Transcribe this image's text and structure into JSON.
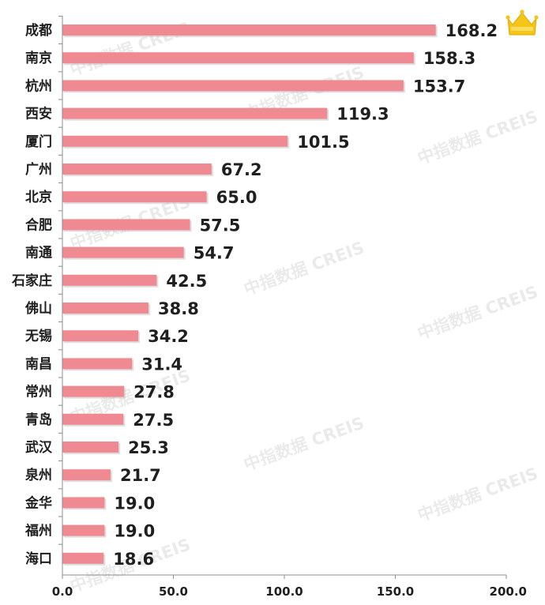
{
  "chart_data": {
    "type": "bar",
    "orientation": "horizontal",
    "categories": [
      "成都",
      "南京",
      "杭州",
      "西安",
      "厦门",
      "广州",
      "北京",
      "合肥",
      "南通",
      "石家庄",
      "佛山",
      "无锡",
      "南昌",
      "常州",
      "青岛",
      "武汉",
      "泉州",
      "金华",
      "福州",
      "海口"
    ],
    "values": [
      168.2,
      158.3,
      153.7,
      119.3,
      101.5,
      67.2,
      65.0,
      57.5,
      54.7,
      42.5,
      38.8,
      34.2,
      31.4,
      27.8,
      27.5,
      25.3,
      21.7,
      19.0,
      19.0,
      18.6
    ],
    "value_labels": [
      "168.2",
      "158.3",
      "153.7",
      "119.3",
      "101.5",
      "67.2",
      "65.0",
      "57.5",
      "54.7",
      "42.5",
      "38.8",
      "34.2",
      "31.4",
      "27.8",
      "27.5",
      "25.3",
      "21.7",
      "19.0",
      "19.0",
      "18.6"
    ],
    "xlim": [
      0,
      200
    ],
    "xticks": [
      "0.0",
      "50.0",
      "100.0",
      "150.0",
      "200.0"
    ],
    "xtick_values": [
      0,
      50,
      100,
      150,
      200
    ],
    "bar_color": "#f08a92",
    "grid": false,
    "title": "",
    "xlabel": "",
    "ylabel": ""
  },
  "watermark_text": "中指数据 CREIS",
  "crown_icon": "crown-icon",
  "colors": {
    "crown": "#f5c518",
    "axis": "#8c8c8c",
    "text": "#1f1f1f"
  }
}
